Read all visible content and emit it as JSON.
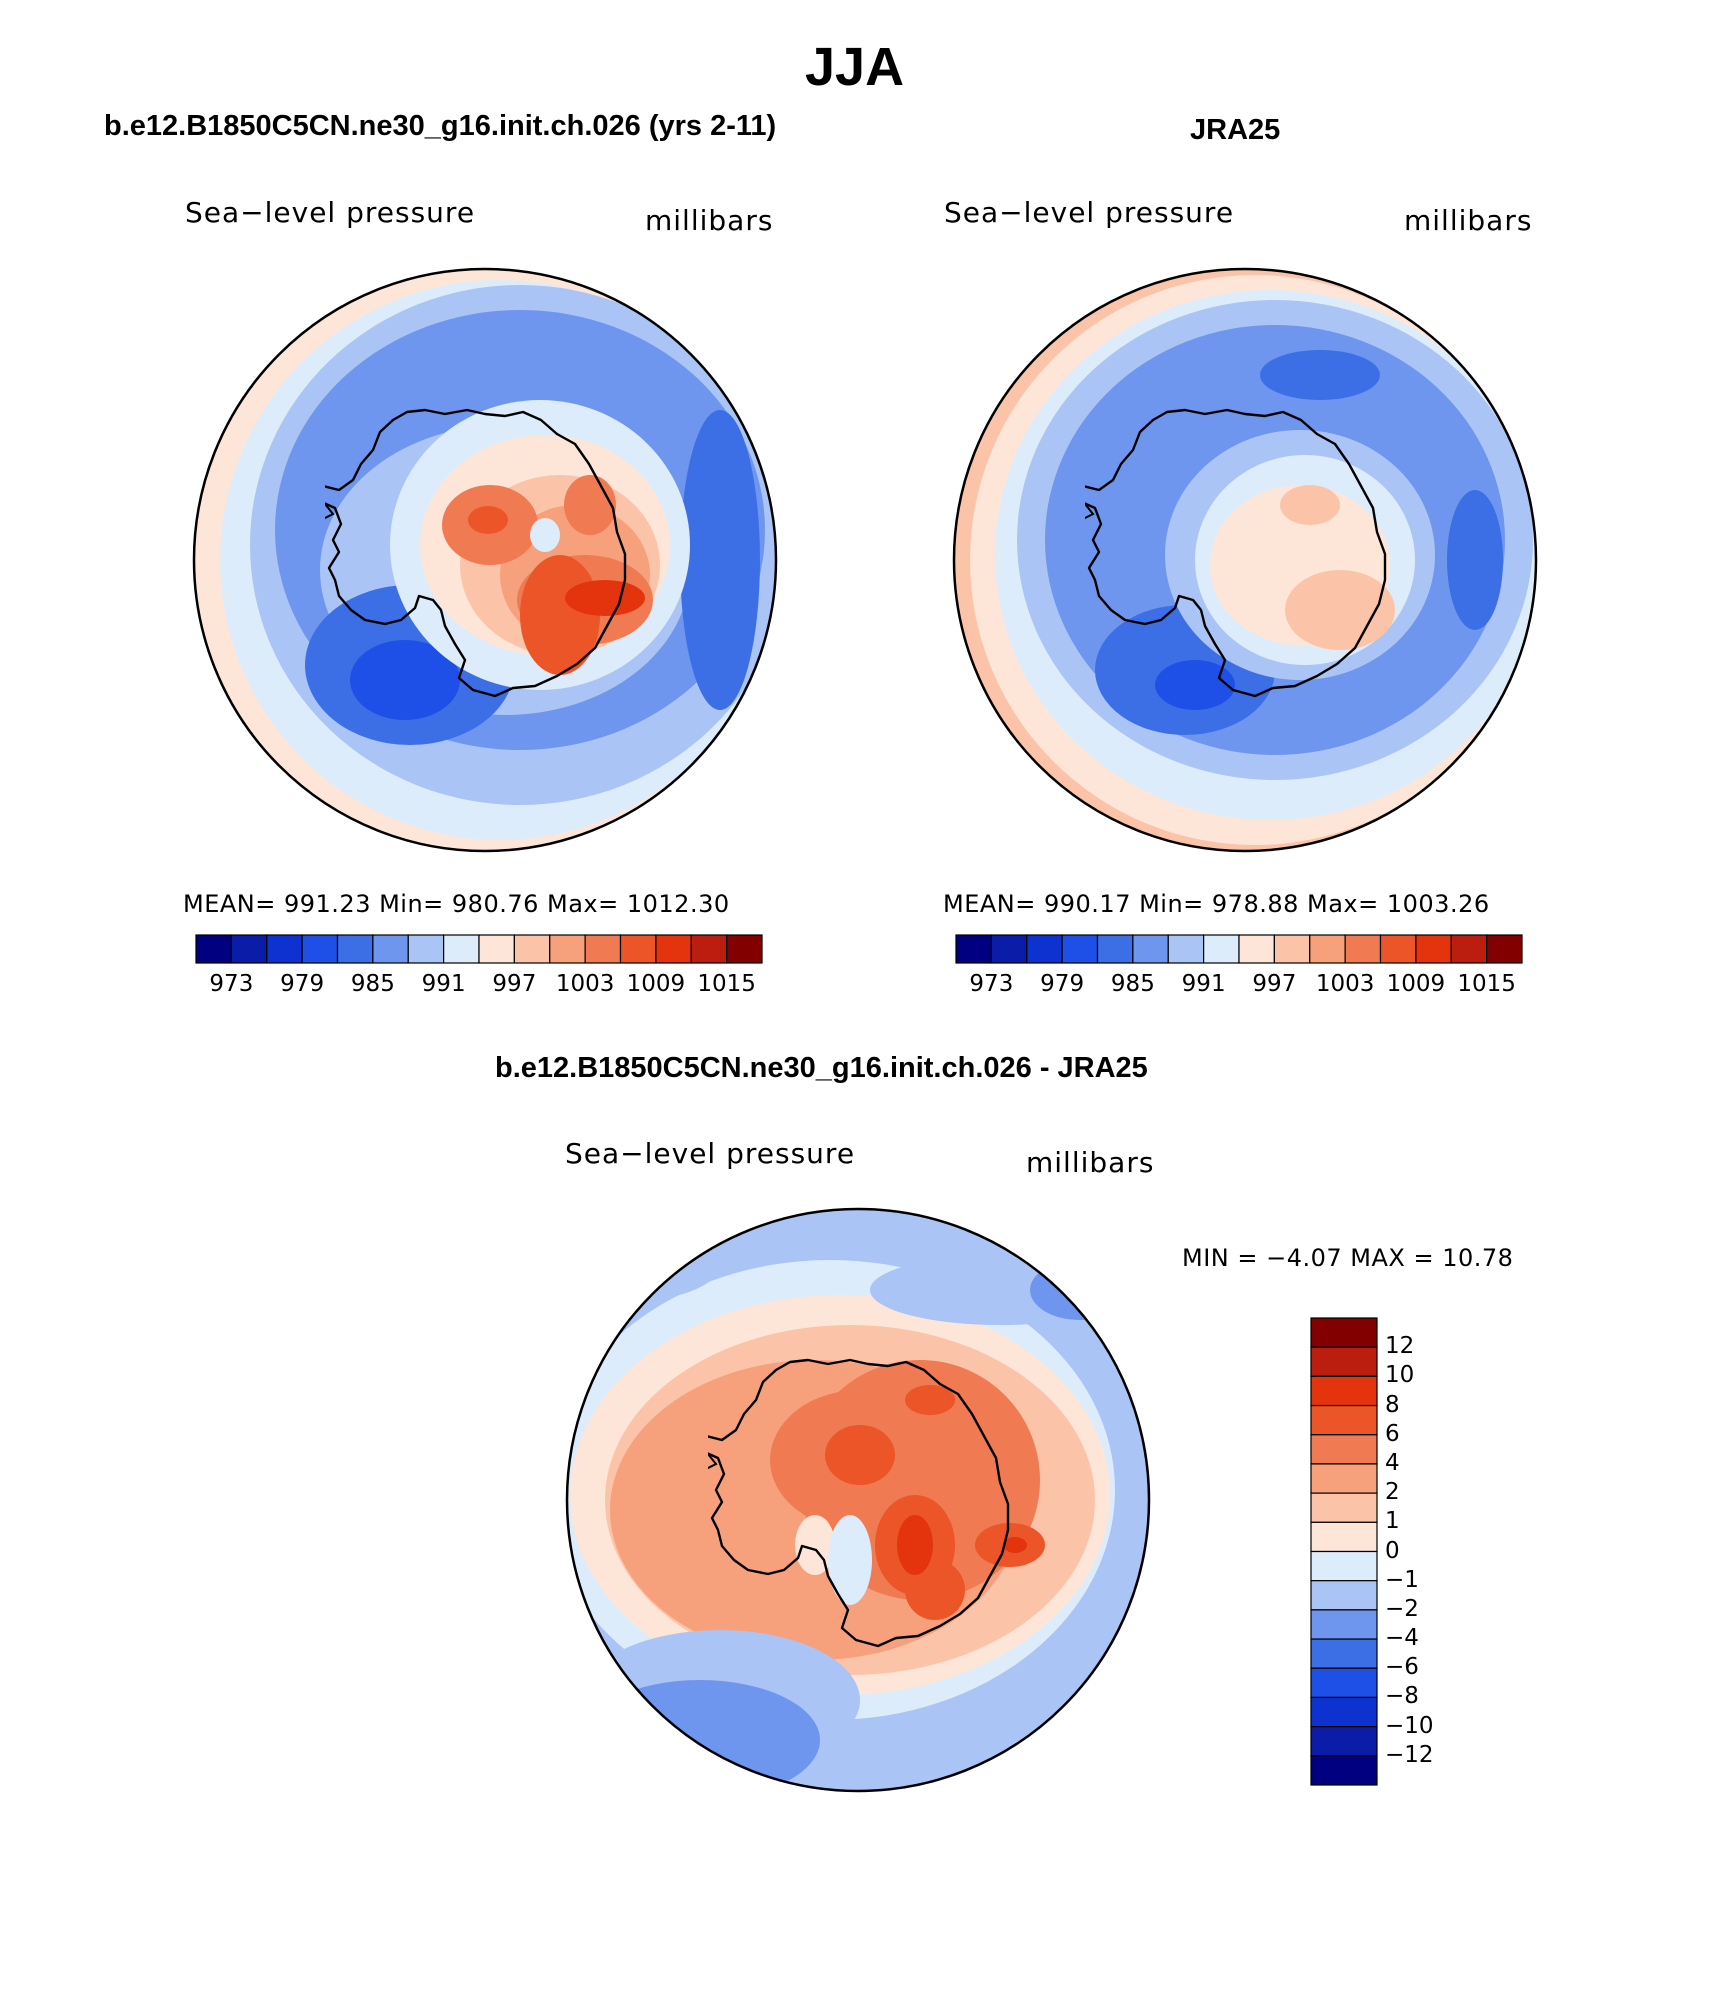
{
  "figure": {
    "title": "JJA",
    "panels": [
      {
        "title": "b.e12.B1850C5CN.ne30_g16.init.ch.026 (yrs 2-11)",
        "variable": "Sea−level pressure",
        "units": "millibars",
        "stats": "MEAN=  991.23   Min=  980.76   Max=  1012.30",
        "colorbar_labels": [
          "973",
          "979",
          "985",
          "991",
          "997",
          "1003",
          "1009",
          "1015"
        ]
      },
      {
        "title": "JRA25",
        "variable": "Sea−level pressure",
        "units": "millibars",
        "stats": "MEAN=  990.17   Min=  978.88   Max=  1003.26",
        "colorbar_labels": [
          "973",
          "979",
          "985",
          "991",
          "997",
          "1003",
          "1009",
          "1015"
        ]
      },
      {
        "title": "b.e12.B1850C5CN.ne30_g16.init.ch.026 - JRA25",
        "variable": "Sea−level pressure",
        "units": "millibars",
        "stats": "MIN =   −4.07  MAX =    10.78",
        "colorbar_labels": [
          "12",
          "10",
          "8",
          "6",
          "4",
          "2",
          "1",
          "0",
          "−1",
          "−2",
          "−4",
          "−6",
          "−8",
          "−10",
          "−12"
        ]
      }
    ]
  },
  "colors": {
    "abs_scale": [
      "#000080",
      "#0a1ca8",
      "#0e32d0",
      "#1e50e8",
      "#3c6ee6",
      "#6e96ee",
      "#aac4f5",
      "#dcecfa",
      "#fde6d8",
      "#fbc4a8",
      "#f7a07c",
      "#f07a52",
      "#eb5528",
      "#e3340e",
      "#bb1e0e",
      "#820000"
    ],
    "diff_scale": [
      "#820000",
      "#bb1e0e",
      "#e3340e",
      "#eb5528",
      "#f07a52",
      "#f7a07c",
      "#fbc4a8",
      "#fde6d8",
      "#dcecfa",
      "#aac4f5",
      "#6e96ee",
      "#3c6ee6",
      "#1e50e8",
      "#0e32d0",
      "#0a1ca8",
      "#000080"
    ]
  },
  "chart_data": [
    {
      "type": "map",
      "projection": "south polar stereographic",
      "title": "b.e12.B1850C5CN.ne30_g16.init.ch.026 (yrs 2-11)",
      "variable": "Sea-level pressure",
      "units": "millibars",
      "mean": 991.23,
      "min": 980.76,
      "max": 1012.3,
      "contour_levels": [
        973,
        976,
        979,
        982,
        985,
        988,
        991,
        994,
        997,
        1000,
        1003,
        1006,
        1009,
        1012,
        1015
      ]
    },
    {
      "type": "map",
      "projection": "south polar stereographic",
      "title": "JRA25",
      "variable": "Sea-level pressure",
      "units": "millibars",
      "mean": 990.17,
      "min": 978.88,
      "max": 1003.26,
      "contour_levels": [
        973,
        976,
        979,
        982,
        985,
        988,
        991,
        994,
        997,
        1000,
        1003,
        1006,
        1009,
        1012,
        1015
      ]
    },
    {
      "type": "map",
      "projection": "south polar stereographic",
      "title": "b.e12.B1850C5CN.ne30_g16.init.ch.026 - JRA25",
      "variable": "Sea-level pressure",
      "units": "millibars",
      "min": -4.07,
      "max": 10.78,
      "contour_levels": [
        -12,
        -10,
        -8,
        -6,
        -4,
        -2,
        -1,
        0,
        1,
        2,
        4,
        6,
        8,
        10,
        12
      ]
    }
  ]
}
